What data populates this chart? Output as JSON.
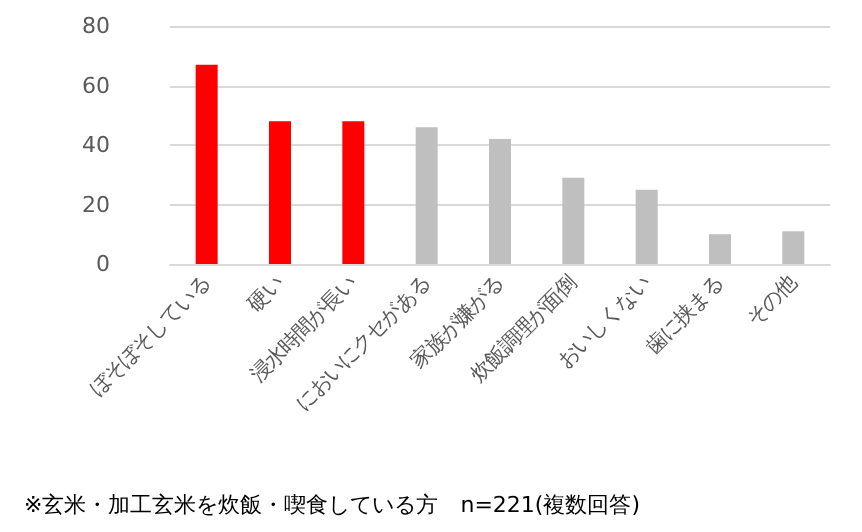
{
  "chart_data": {
    "type": "bar",
    "categories": [
      "ぼそぼそしている",
      "硬い",
      "浸水時間が長い",
      "においにクセがある",
      "家族が嫌がる",
      "炊飯調理が面倒",
      "おいしくない",
      "歯に挟まる",
      "その他"
    ],
    "values": [
      67,
      48,
      48,
      46,
      42,
      29,
      25,
      10,
      11
    ],
    "colors": [
      "#ff0000",
      "#ff0000",
      "#ff0000",
      "#bfbfbf",
      "#bfbfbf",
      "#bfbfbf",
      "#bfbfbf",
      "#bfbfbf",
      "#bfbfbf"
    ],
    "ylim": [
      0,
      80
    ],
    "yticks": [
      0,
      20,
      40,
      60,
      80
    ],
    "grid": "y",
    "annotations": [
      "※玄米・加工玄米を炊飯・喫食している方　n=221(複数回答)"
    ]
  }
}
